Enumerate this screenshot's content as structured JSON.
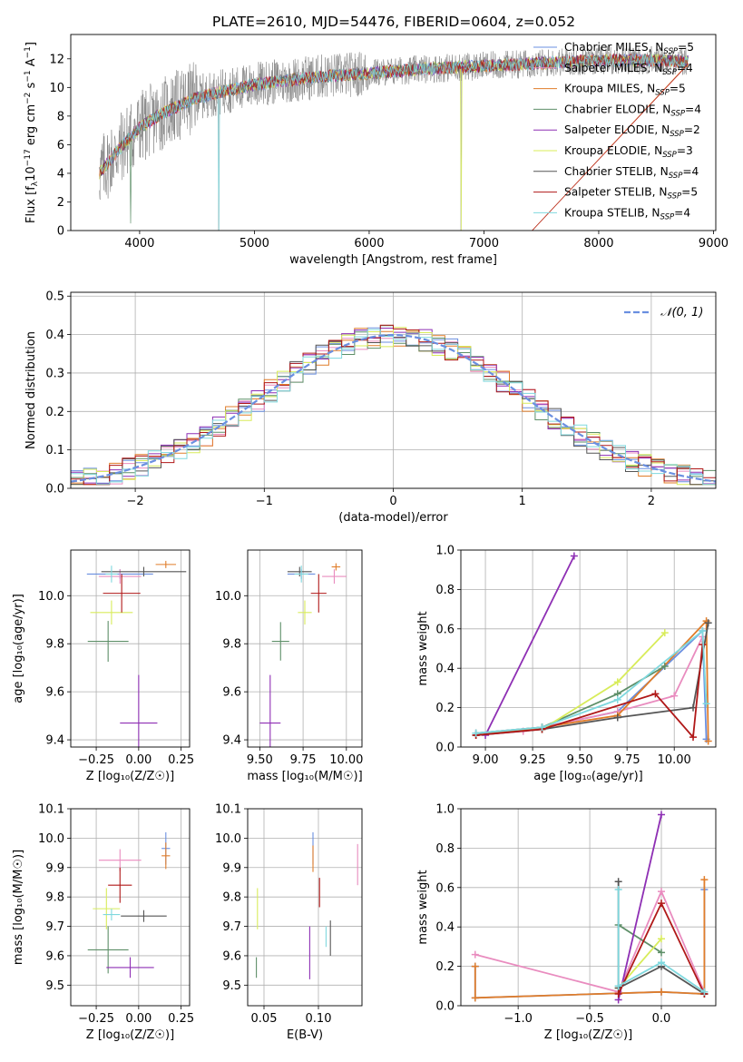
{
  "title": "PLATE=2610, MJD=54476, FIBERID=0604, z=0.052",
  "colors": {
    "Chabrier MILES": "#6a8fe0",
    "Salpeter MILES": "#e98cbf",
    "Kroupa MILES": "#e07d2a",
    "Chabrier ELODIE": "#5e8f68",
    "Salpeter ELODIE": "#8e2fb4",
    "Kroupa ELODIE": "#d8ec5a",
    "Chabrier STELIB": "#555555",
    "Salpeter STELIB": "#b01818",
    "Kroupa STELIB": "#7fd8de",
    "data": "#808080",
    "normal": "#6a8fe0"
  },
  "chart_data": [
    {
      "id": "spectrum",
      "type": "line",
      "ylabel_parts": [
        "Flux [f",
        "λ",
        "10",
        "−17",
        " erg cm",
        "−2",
        " s",
        "−1",
        " A",
        "−1",
        "]"
      ],
      "xlabel": "wavelength [Angstrom, rest frame]",
      "xlim": [
        3400,
        9020
      ],
      "ylim": [
        0,
        13.7
      ],
      "xticks": [
        "4000",
        "5000",
        "6000",
        "7000",
        "8000",
        "9000"
      ],
      "yticks": [
        "0",
        "2",
        "4",
        "6",
        "8",
        "10",
        "12"
      ],
      "grid": false,
      "legend_position": "top-right",
      "series": [
        {
          "name": "Chabrier MILES",
          "nssp": "5"
        },
        {
          "name": "Salpeter MILES",
          "nssp": "4"
        },
        {
          "name": "Kroupa MILES",
          "nssp": "5"
        },
        {
          "name": "Chabrier ELODIE",
          "nssp": "4"
        },
        {
          "name": "Salpeter ELODIE",
          "nssp": "2"
        },
        {
          "name": "Kroupa ELODIE",
          "nssp": "3"
        },
        {
          "name": "Chabrier STELIB",
          "nssp": "4"
        },
        {
          "name": "Salpeter STELIB",
          "nssp": "5"
        },
        {
          "name": "Kroupa STELIB",
          "nssp": "4"
        }
      ],
      "data_range": [
        3650,
        8780
      ],
      "continuum": {
        "x": [
          3650,
          3800,
          4000,
          4200,
          4500,
          5000,
          5500,
          6000,
          6500,
          7000,
          7500,
          8000,
          8500,
          8780
        ],
        "y": [
          4.0,
          5.5,
          7.2,
          8.2,
          9.3,
          10.2,
          10.7,
          11.0,
          11.3,
          11.5,
          11.7,
          11.9,
          11.9,
          11.8
        ]
      }
    },
    {
      "id": "residuals",
      "type": "histogram",
      "xlabel": "(data-model)/error",
      "ylabel": "Normed distribution",
      "xlim": [
        -2.5,
        2.5
      ],
      "ylim": [
        0,
        0.51
      ],
      "xticks": [
        "−2",
        "−1",
        "0",
        "1",
        "2"
      ],
      "yticks": [
        "0.0",
        "0.1",
        "0.2",
        "0.3",
        "0.4",
        "0.5"
      ],
      "grid": true,
      "legend": "𝒩(0, 1)",
      "legend_position": "top-right",
      "bin_width": 0.1
    },
    {
      "id": "age-vs-Z",
      "type": "scatter",
      "xlabel": "Z [log₁₀(Z/Z☉)]",
      "ylabel": "age  [log₁₀(age/yr)]",
      "xlim": [
        -0.4,
        0.3
      ],
      "ylim": [
        9.37,
        10.19
      ],
      "xticks": [
        {
          "v": -0.25,
          "t": "−0.25"
        },
        {
          "v": 0.0,
          "t": "0.00"
        },
        {
          "v": 0.25,
          "t": "0.25"
        }
      ],
      "yticks": [
        {
          "v": 9.4,
          "t": "9.4"
        },
        {
          "v": 9.6,
          "t": "9.6"
        },
        {
          "v": 9.8,
          "t": "9.8"
        },
        {
          "v": 10.0,
          "t": "10.0"
        }
      ],
      "grid": true,
      "points": [
        {
          "s": "Chabrier MILES",
          "x": -0.11,
          "y": 10.09,
          "xe": 0.39,
          "ye": 0.04
        },
        {
          "s": "Salpeter MILES",
          "x": -0.11,
          "y": 10.08,
          "xe": 0.25,
          "ye": 0.06
        },
        {
          "s": "Kroupa MILES",
          "x": 0.16,
          "y": 10.13,
          "xe": 0.12,
          "ye": 0.03
        },
        {
          "s": "Chabrier ELODIE",
          "x": -0.18,
          "y": 9.81,
          "xe": 0.24,
          "ye": 0.17
        },
        {
          "s": "Salpeter ELODIE",
          "x": 0.0,
          "y": 9.47,
          "xe": 0.22,
          "ye": 0.4
        },
        {
          "s": "Kroupa ELODIE",
          "x": -0.16,
          "y": 9.93,
          "xe": 0.25,
          "ye": 0.1
        },
        {
          "s": "Chabrier STELIB",
          "x": 0.03,
          "y": 10.1,
          "xe": 0.5,
          "ye": 0.04
        },
        {
          "s": "Salpeter STELIB",
          "x": -0.1,
          "y": 10.01,
          "xe": 0.22,
          "ye": 0.16
        },
        {
          "s": "Kroupa STELIB",
          "x": -0.16,
          "y": 10.09,
          "xe": 0.07,
          "ye": 0.07
        }
      ]
    },
    {
      "id": "age-vs-mass",
      "type": "scatter",
      "xlabel": "mass [log₁₀(M/M☉)]",
      "xlim": [
        9.43,
        10.09
      ],
      "ylim": [
        9.37,
        10.19
      ],
      "xticks": [
        {
          "v": 9.5,
          "t": "9.50"
        },
        {
          "v": 9.75,
          "t": "9.75"
        },
        {
          "v": 10.0,
          "t": "10.00"
        }
      ],
      "yticks": [
        {
          "v": 9.4,
          "t": "9.4"
        },
        {
          "v": 9.6,
          "t": "9.6"
        },
        {
          "v": 9.8,
          "t": "9.8"
        },
        {
          "v": 10.0,
          "t": "10.0"
        }
      ],
      "grid": true,
      "points": [
        {
          "s": "Chabrier MILES",
          "x": 9.74,
          "y": 10.09,
          "xe": 0.16,
          "ye": 0.04
        },
        {
          "s": "Salpeter MILES",
          "x": 9.93,
          "y": 10.08,
          "xe": 0.14,
          "ye": 0.06
        },
        {
          "s": "Kroupa MILES",
          "x": 9.94,
          "y": 10.12,
          "xe": 0.05,
          "ye": 0.03
        },
        {
          "s": "Chabrier ELODIE",
          "x": 9.62,
          "y": 9.81,
          "xe": 0.1,
          "ye": 0.16
        },
        {
          "s": "Salpeter ELODIE",
          "x": 9.56,
          "y": 9.47,
          "xe": 0.12,
          "ye": 0.4
        },
        {
          "s": "Kroupa ELODIE",
          "x": 9.76,
          "y": 9.93,
          "xe": 0.08,
          "ye": 0.1
        },
        {
          "s": "Chabrier STELIB",
          "x": 9.73,
          "y": 10.1,
          "xe": 0.14,
          "ye": 0.04
        },
        {
          "s": "Salpeter STELIB",
          "x": 9.84,
          "y": 10.01,
          "xe": 0.09,
          "ye": 0.16
        },
        {
          "s": "Kroupa STELIB",
          "x": 9.74,
          "y": 10.09,
          "xe": 0.08,
          "ye": 0.07
        }
      ]
    },
    {
      "id": "weight-vs-age",
      "type": "line",
      "xlabel": "age  [log₁₀(age/yr)]",
      "ylabel": "mass weight",
      "xlim": [
        8.87,
        10.22
      ],
      "ylim": [
        0,
        1.0
      ],
      "xticks": [
        {
          "v": 9.0,
          "t": "9.00"
        },
        {
          "v": 9.25,
          "t": "9.25"
        },
        {
          "v": 9.5,
          "t": "9.50"
        },
        {
          "v": 9.75,
          "t": "9.75"
        },
        {
          "v": 10.0,
          "t": "10.00"
        }
      ],
      "yticks": [
        {
          "v": 0,
          "t": "0.0"
        },
        {
          "v": 0.2,
          "t": "0.2"
        },
        {
          "v": 0.4,
          "t": "0.4"
        },
        {
          "v": 0.6,
          "t": "0.6"
        },
        {
          "v": 0.8,
          "t": "0.8"
        },
        {
          "v": 1.0,
          "t": "1.0"
        }
      ],
      "grid": true,
      "series": [
        {
          "s": "Chabrier MILES",
          "x": [
            8.95,
            9.3,
            9.7,
            10.15,
            10.17
          ],
          "y": [
            0.07,
            0.1,
            0.18,
            0.59,
            0.04
          ]
        },
        {
          "s": "Salpeter MILES",
          "x": [
            8.95,
            9.2,
            9.7,
            10.0,
            10.15
          ],
          "y": [
            0.06,
            0.08,
            0.18,
            0.26,
            0.56
          ]
        },
        {
          "s": "Kroupa MILES",
          "x": [
            8.95,
            9.3,
            9.7,
            10.17,
            10.18
          ],
          "y": [
            0.06,
            0.1,
            0.16,
            0.64,
            0.03
          ]
        },
        {
          "s": "Chabrier ELODIE",
          "x": [
            8.95,
            9.3,
            9.7,
            9.95
          ],
          "y": [
            0.07,
            0.1,
            0.27,
            0.41
          ]
        },
        {
          "s": "Salpeter ELODIE",
          "x": [
            9.0,
            9.47
          ],
          "y": [
            0.06,
            0.97
          ]
        },
        {
          "s": "Kroupa ELODIE",
          "x": [
            9.3,
            9.7,
            9.95
          ],
          "y": [
            0.09,
            0.33,
            0.58
          ]
        },
        {
          "s": "Chabrier STELIB",
          "x": [
            8.95,
            9.3,
            9.7,
            10.1,
            10.18
          ],
          "y": [
            0.06,
            0.09,
            0.15,
            0.2,
            0.63
          ]
        },
        {
          "s": "Salpeter STELIB",
          "x": [
            8.95,
            9.3,
            9.9,
            10.1,
            10.15
          ],
          "y": [
            0.06,
            0.09,
            0.27,
            0.05,
            0.52
          ]
        },
        {
          "s": "Kroupa STELIB",
          "x": [
            8.95,
            9.3,
            9.7,
            10.15,
            10.17
          ],
          "y": [
            0.07,
            0.1,
            0.24,
            0.59,
            0.22
          ]
        }
      ]
    },
    {
      "id": "mass-vs-Z",
      "type": "scatter",
      "xlabel": "Z [log₁₀(Z/Z☉)]",
      "ylabel": "mass [log₁₀(M/M☉)]",
      "xlim": [
        -0.4,
        0.3
      ],
      "ylim": [
        9.43,
        10.1
      ],
      "xticks": [
        {
          "v": -0.25,
          "t": "−0.25"
        },
        {
          "v": 0.0,
          "t": "0.00"
        },
        {
          "v": 0.25,
          "t": "0.25"
        }
      ],
      "yticks": [
        {
          "v": 9.5,
          "t": "9.5"
        },
        {
          "v": 9.6,
          "t": "9.6"
        },
        {
          "v": 9.7,
          "t": "9.7"
        },
        {
          "v": 9.8,
          "t": "9.8"
        },
        {
          "v": 9.9,
          "t": "9.9"
        },
        {
          "v": 10.0,
          "t": "10.0"
        },
        {
          "v": 10.1,
          "t": "10.1"
        }
      ],
      "grid": true,
      "points": [
        {
          "s": "Chabrier MILES",
          "x": 0.16,
          "y": 9.965,
          "xe": 0.05,
          "ye": 0.11
        },
        {
          "s": "Salpeter MILES",
          "x": -0.11,
          "y": 9.925,
          "xe": 0.25,
          "ye": 0.075
        },
        {
          "s": "Kroupa MILES",
          "x": 0.16,
          "y": 9.94,
          "xe": 0.05,
          "ye": 0.09
        },
        {
          "s": "Chabrier ELODIE",
          "x": -0.18,
          "y": 9.62,
          "xe": 0.24,
          "ye": 0.16
        },
        {
          "s": "Salpeter ELODIE",
          "x": -0.05,
          "y": 9.56,
          "xe": 0.28,
          "ye": 0.07
        },
        {
          "s": "Kroupa ELODIE",
          "x": -0.19,
          "y": 9.76,
          "xe": 0.16,
          "ye": 0.14
        },
        {
          "s": "Chabrier STELIB",
          "x": 0.03,
          "y": 9.735,
          "xe": 0.27,
          "ye": 0.04
        },
        {
          "s": "Salpeter STELIB",
          "x": -0.11,
          "y": 9.84,
          "xe": 0.14,
          "ye": 0.12
        },
        {
          "s": "Kroupa STELIB",
          "x": -0.16,
          "y": 9.74,
          "xe": 0.1,
          "ye": 0.04
        }
      ]
    },
    {
      "id": "mass-vs-EBV",
      "type": "scatter",
      "xlabel": "E(B-V)",
      "xlim": [
        0.035,
        0.14
      ],
      "ylim": [
        9.43,
        10.1
      ],
      "xticks": [
        {
          "v": 0.05,
          "t": "0.05"
        },
        {
          "v": 0.1,
          "t": "0.10"
        }
      ],
      "yticks": [
        {
          "v": 9.5,
          "t": "9.5"
        },
        {
          "v": 9.6,
          "t": "9.6"
        },
        {
          "v": 9.7,
          "t": "9.7"
        },
        {
          "v": 9.8,
          "t": "9.8"
        },
        {
          "v": 9.9,
          "t": "9.9"
        },
        {
          "v": 10.0,
          "t": "10.0"
        },
        {
          "v": 10.1,
          "t": "10.1"
        }
      ],
      "grid": true,
      "points": [
        {
          "s": "Chabrier MILES",
          "x": 0.095,
          "y": 9.965,
          "xe": 0,
          "ye": 0.11
        },
        {
          "s": "Salpeter MILES",
          "x": 0.136,
          "y": 9.91,
          "xe": 0,
          "ye": 0.14
        },
        {
          "s": "Kroupa MILES",
          "x": 0.095,
          "y": 9.93,
          "xe": 0,
          "ye": 0.09
        },
        {
          "s": "Chabrier ELODIE",
          "x": 0.043,
          "y": 9.56,
          "xe": 0,
          "ye": 0.07
        },
        {
          "s": "Salpeter ELODIE",
          "x": 0.092,
          "y": 9.61,
          "xe": 0,
          "ye": 0.18
        },
        {
          "s": "Kroupa ELODIE",
          "x": 0.044,
          "y": 9.76,
          "xe": 0,
          "ye": 0.14
        },
        {
          "s": "Chabrier STELIB",
          "x": 0.111,
          "y": 9.66,
          "xe": 0,
          "ye": 0.12
        },
        {
          "s": "Salpeter STELIB",
          "x": 0.101,
          "y": 9.815,
          "xe": 0,
          "ye": 0.1
        },
        {
          "s": "Kroupa STELIB",
          "x": 0.107,
          "y": 9.665,
          "xe": 0,
          "ye": 0.07
        }
      ]
    },
    {
      "id": "weight-vs-Z",
      "type": "line",
      "xlabel": "Z [log₁₀(Z/Z☉)]",
      "ylabel": "mass weight",
      "xlim": [
        -1.4,
        0.38
      ],
      "ylim": [
        0,
        1.0
      ],
      "xticks": [
        {
          "v": -1.0,
          "t": "−1.0"
        },
        {
          "v": -0.5,
          "t": "−0.5"
        },
        {
          "v": 0.0,
          "t": "0.0"
        }
      ],
      "yticks": [
        {
          "v": 0,
          "t": "0.0"
        },
        {
          "v": 0.2,
          "t": "0.2"
        },
        {
          "v": 0.4,
          "t": "0.4"
        },
        {
          "v": 0.6,
          "t": "0.6"
        },
        {
          "v": 0.8,
          "t": "0.8"
        },
        {
          "v": 1.0,
          "t": "1.0"
        }
      ],
      "grid": true,
      "series": [
        {
          "s": "Chabrier MILES",
          "x": [
            -1.3,
            -1.3,
            0.0,
            0.3,
            0.3
          ],
          "y": [
            0.2,
            0.04,
            0.07,
            0.06,
            0.59
          ]
        },
        {
          "s": "Salpeter MILES",
          "x": [
            -1.3,
            -0.3,
            0.0,
            0.3
          ],
          "y": [
            0.26,
            0.07,
            0.58,
            0.07
          ]
        },
        {
          "s": "Kroupa MILES",
          "x": [
            -1.3,
            -1.3,
            0.0,
            0.3,
            0.3
          ],
          "y": [
            0.2,
            0.04,
            0.07,
            0.06,
            0.64
          ]
        },
        {
          "s": "Chabrier ELODIE",
          "x": [
            -0.3,
            0.0
          ],
          "y": [
            0.41,
            0.27
          ]
        },
        {
          "s": "Salpeter ELODIE",
          "x": [
            -0.3,
            0.0
          ],
          "y": [
            0.03,
            0.97
          ]
        },
        {
          "s": "Kroupa ELODIE",
          "x": [
            -0.3,
            0.0
          ],
          "y": [
            0.09,
            0.34
          ]
        },
        {
          "s": "Chabrier STELIB",
          "x": [
            -0.3,
            -0.3,
            0.0,
            0.3
          ],
          "y": [
            0.63,
            0.09,
            0.2,
            0.06
          ]
        },
        {
          "s": "Salpeter STELIB",
          "x": [
            -0.3,
            0.0,
            0.3
          ],
          "y": [
            0.06,
            0.52,
            0.06
          ]
        },
        {
          "s": "Kroupa STELIB",
          "x": [
            -0.3,
            -0.3,
            0.0,
            0.3
          ],
          "y": [
            0.59,
            0.1,
            0.22,
            0.07
          ]
        }
      ]
    }
  ]
}
